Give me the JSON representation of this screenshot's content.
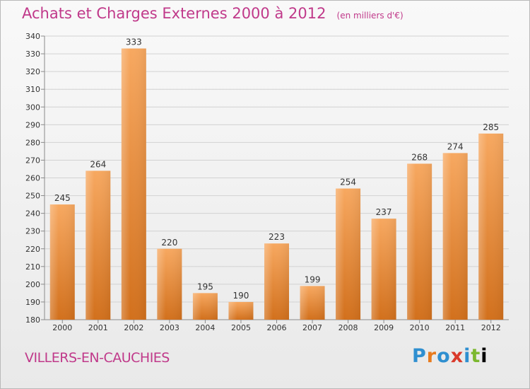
{
  "header": {
    "title": "Achats et Charges Externes 2000 à 2012",
    "unit": "(en milliers d'€)"
  },
  "footer": {
    "commune": "VILLERS-EN-CAUCHIES",
    "logo_letters": [
      "P",
      "r",
      "o",
      "x",
      "i",
      "t",
      "i"
    ]
  },
  "colors": {
    "title": "#c0398a",
    "bar_light": "#f7a860",
    "bar_dark": "#d2701c"
  },
  "chart_data": {
    "type": "bar",
    "categories": [
      "2000",
      "2001",
      "2002",
      "2003",
      "2004",
      "2005",
      "2006",
      "2007",
      "2008",
      "2009",
      "2010",
      "2011",
      "2012"
    ],
    "values": [
      245,
      264,
      333,
      220,
      195,
      190,
      223,
      199,
      254,
      237,
      268,
      274,
      285
    ],
    "ylim": [
      180,
      340
    ],
    "yticks": [
      180,
      190,
      200,
      210,
      220,
      230,
      240,
      250,
      260,
      270,
      280,
      290,
      300,
      310,
      320,
      330,
      340
    ],
    "grid": true,
    "xlabel": "",
    "ylabel": ""
  }
}
